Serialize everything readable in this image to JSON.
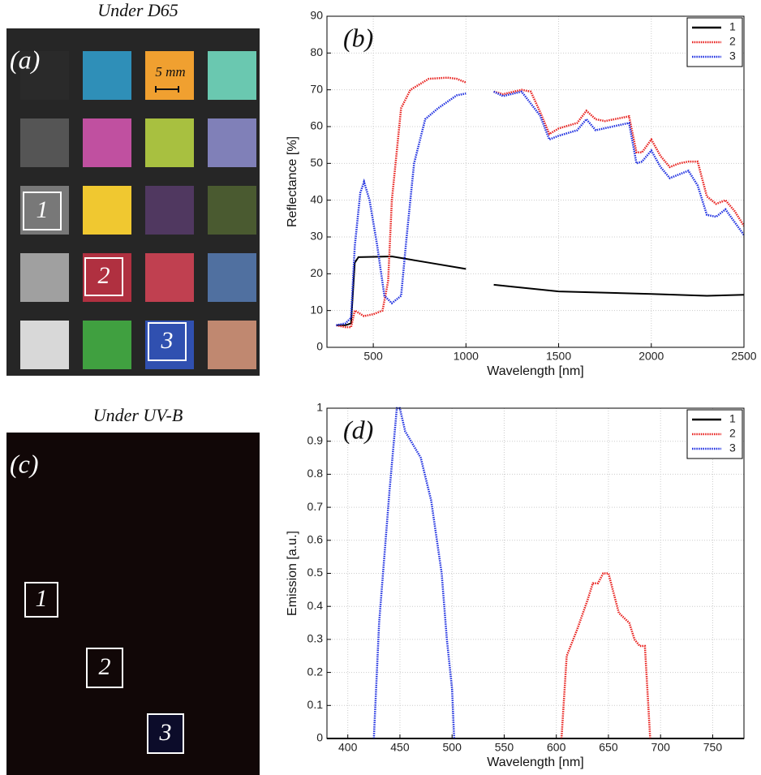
{
  "photos": [
    {
      "title": "Under D65",
      "label": "(a)",
      "scale_label": "5 mm",
      "swatches": [
        "#2a2a2a",
        "#2f8fb8",
        "#f0a030",
        "#6ac8b0",
        "#555555",
        "#c050a0",
        "#a8c040",
        "#8080b8",
        "#787878",
        "#f0c830",
        "#503860",
        "#4a5a30",
        "#a0a0a0",
        "#b03040",
        "#c04050",
        "#5070a0",
        "#d8d8d8",
        "#40a040",
        "#3050b0",
        "#c08870"
      ],
      "boxes": [
        "1",
        "2",
        "3"
      ]
    },
    {
      "title": "Under UV-B",
      "label": "(c)",
      "boxes": [
        "1",
        "2",
        "3"
      ]
    }
  ],
  "chart_data": [
    {
      "type": "line",
      "label": "(b)",
      "xlabel": "Wavelength [nm]",
      "ylabel": "Reflectance [%]",
      "xlim": [
        250,
        2500
      ],
      "xticks": [
        500,
        1000,
        1500,
        2000,
        2500
      ],
      "ylim": [
        0,
        90
      ],
      "yticks": [
        0,
        10,
        20,
        30,
        40,
        50,
        60,
        70,
        80,
        90
      ],
      "grid": true,
      "legend": "upper right",
      "series": [
        {
          "name": "1",
          "color": "#000000",
          "style": "solid",
          "x": [
            300,
            350,
            380,
            400,
            420,
            600,
            800,
            1000,
            1075,
            1150,
            1500,
            2000,
            2300,
            2500
          ],
          "values": [
            6,
            6,
            6.5,
            23,
            24.5,
            24.7,
            23,
            21.3,
            null,
            17,
            15.2,
            14.5,
            14,
            14.3
          ]
        },
        {
          "name": "2",
          "color": "#e8211e",
          "style": "dotted",
          "x": [
            300,
            350,
            380,
            400,
            450,
            500,
            550,
            580,
            600,
            650,
            700,
            800,
            900,
            950,
            1000,
            1075,
            1150,
            1200,
            1300,
            1350,
            1400,
            1450,
            1500,
            1600,
            1650,
            1700,
            1750,
            1850,
            1880,
            1920,
            1950,
            2000,
            2050,
            2100,
            2150,
            2200,
            2250,
            2300,
            2350,
            2400,
            2450,
            2500
          ],
          "values": [
            6,
            5.5,
            5.5,
            10,
            8.5,
            9,
            10,
            18,
            40,
            65,
            70,
            73,
            73.3,
            73,
            72,
            null,
            69.5,
            68.8,
            70,
            69.5,
            64,
            58,
            59.5,
            61,
            64.3,
            62,
            61.5,
            62.5,
            62.8,
            53,
            53,
            56.5,
            52,
            49,
            50,
            50.5,
            50.5,
            41,
            39,
            40,
            37,
            33
          ]
        },
        {
          "name": "3",
          "color": "#1e2fe0",
          "style": "dotted",
          "x": [
            300,
            350,
            380,
            400,
            430,
            450,
            480,
            520,
            560,
            600,
            650,
            680,
            720,
            780,
            850,
            950,
            1000,
            1075,
            1150,
            1200,
            1300,
            1400,
            1450,
            1500,
            1600,
            1650,
            1700,
            1880,
            1920,
            1950,
            2000,
            2050,
            2100,
            2200,
            2250,
            2300,
            2350,
            2400,
            2500
          ],
          "values": [
            6,
            6.5,
            8,
            27.5,
            42,
            45,
            40,
            28,
            14,
            12,
            14,
            30,
            50,
            62,
            65,
            68.5,
            69,
            null,
            69.5,
            68.3,
            69.5,
            63,
            56.5,
            57.5,
            59,
            62,
            59,
            61,
            50,
            50.5,
            53.5,
            49,
            46,
            48,
            44,
            36,
            35.5,
            37.5,
            30.5
          ]
        }
      ]
    },
    {
      "type": "line",
      "label": "(d)",
      "xlabel": "Wavelength [nm]",
      "ylabel": "Emission [a.u.]",
      "xlim": [
        380,
        780
      ],
      "xticks": [
        400,
        450,
        500,
        550,
        600,
        650,
        700,
        750
      ],
      "ylim": [
        0,
        1
      ],
      "yticks": [
        0,
        0.1,
        0.2,
        0.3,
        0.4,
        0.5,
        0.6,
        0.7,
        0.8,
        0.9,
        1
      ],
      "grid": true,
      "legend": "upper right",
      "series": [
        {
          "name": "1",
          "color": "#000000",
          "style": "solid",
          "x": [
            380,
            780
          ],
          "values": [
            0,
            0
          ]
        },
        {
          "name": "2",
          "color": "#e8211e",
          "style": "dotted",
          "x": [
            605,
            610,
            620,
            630,
            635,
            640,
            645,
            650,
            655,
            660,
            670,
            675,
            680,
            685,
            690
          ],
          "values": [
            0,
            0.25,
            0.33,
            0.42,
            0.47,
            0.47,
            0.5,
            0.5,
            0.44,
            0.38,
            0.35,
            0.3,
            0.28,
            0.28,
            0
          ]
        },
        {
          "name": "3",
          "color": "#1e2fe0",
          "style": "dotted",
          "x": [
            425,
            430,
            440,
            447,
            450,
            455,
            470,
            480,
            490,
            495,
            500,
            502
          ],
          "values": [
            0,
            0.35,
            0.75,
            1,
            1,
            0.93,
            0.85,
            0.72,
            0.5,
            0.3,
            0.15,
            0
          ]
        }
      ]
    }
  ]
}
